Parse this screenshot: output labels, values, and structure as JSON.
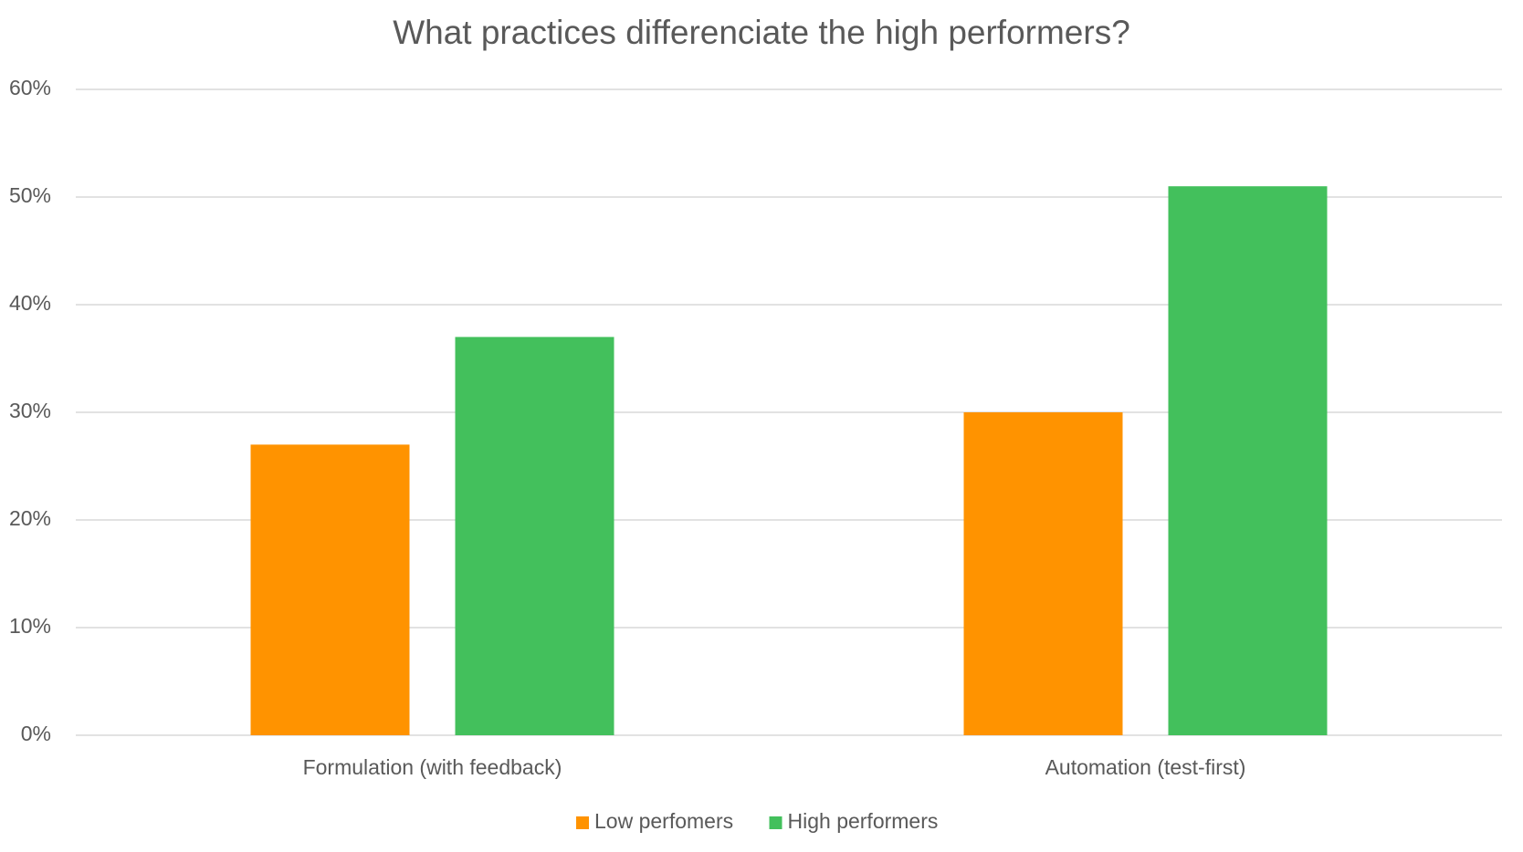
{
  "chart_data": {
    "type": "bar",
    "title": "What practices differenciate the high performers?",
    "categories": [
      "Formulation (with feedback)",
      "Automation (test-first)"
    ],
    "series": [
      {
        "name": "Low perfomers",
        "color": "#ff9300",
        "values": [
          27,
          30
        ]
      },
      {
        "name": "High performers",
        "color": "#43c05c",
        "values": [
          37,
          51
        ]
      }
    ],
    "ylim": [
      0,
      60
    ],
    "yticks": [
      {
        "value": 0,
        "label": "0%"
      },
      {
        "value": 10,
        "label": "10%"
      },
      {
        "value": 20,
        "label": "20%"
      },
      {
        "value": 30,
        "label": "30%"
      },
      {
        "value": 40,
        "label": "40%"
      },
      {
        "value": 50,
        "label": "50%"
      },
      {
        "value": 60,
        "label": "60%"
      }
    ],
    "grid": true,
    "legend": "bottom"
  }
}
